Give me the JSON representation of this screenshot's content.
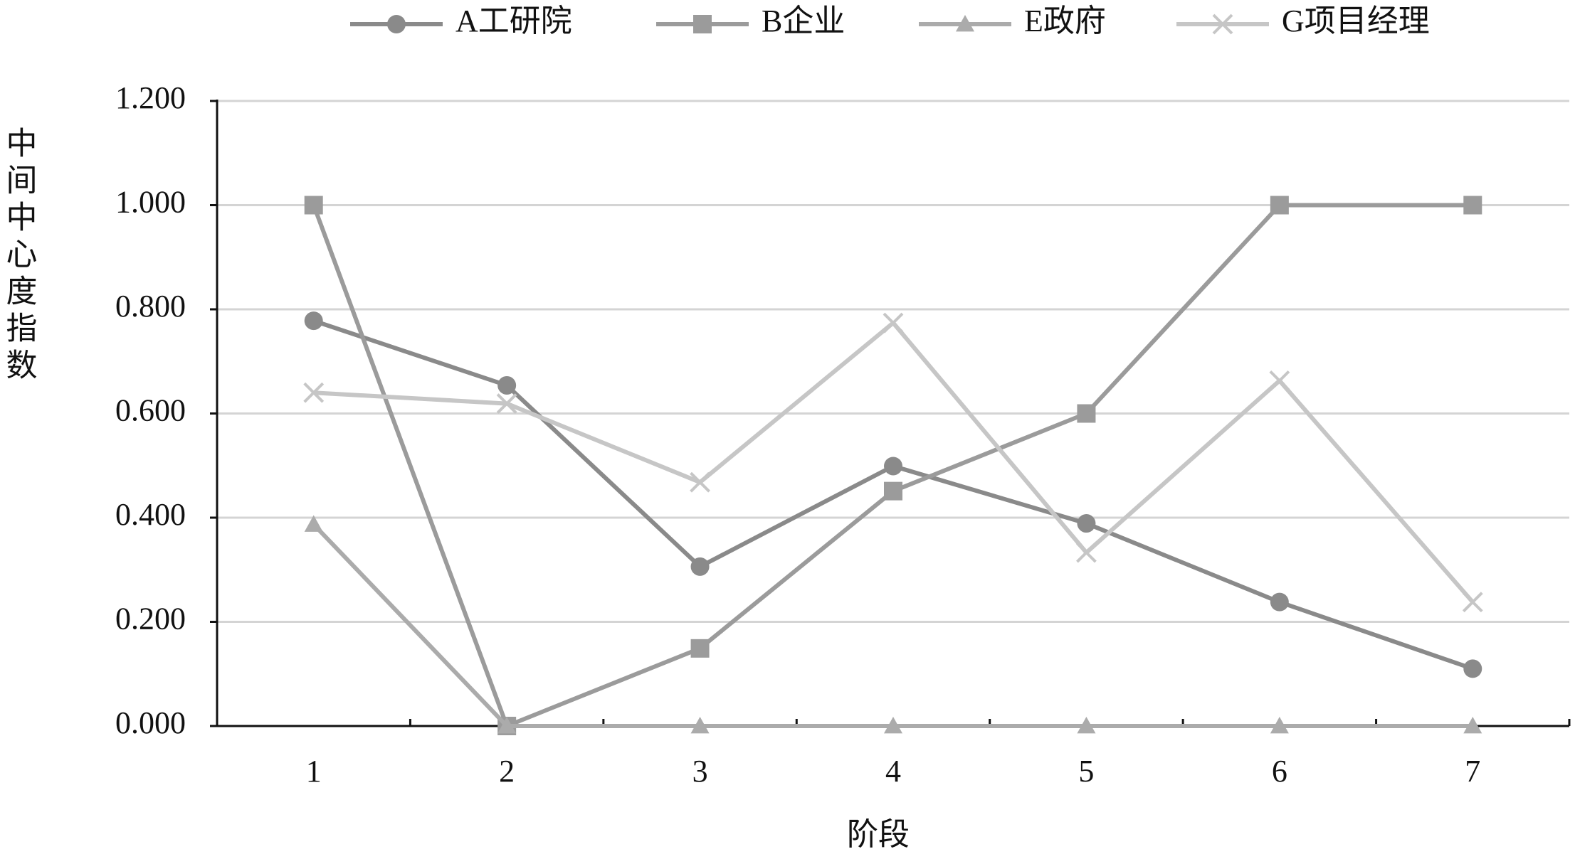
{
  "chart_data": {
    "type": "line",
    "x_label": "阶段",
    "y_label": "中间中心度指数",
    "categories": [
      "1",
      "2",
      "3",
      "4",
      "5",
      "6",
      "7"
    ],
    "ylim": [
      0,
      1.2
    ],
    "yticks": [
      {
        "value": 0,
        "label": "0.000"
      },
      {
        "value": 0.2,
        "label": "0.200"
      },
      {
        "value": 0.4,
        "label": "0.400"
      },
      {
        "value": 0.6,
        "label": "0.600"
      },
      {
        "value": 0.8,
        "label": "0.800"
      },
      {
        "value": 1.0,
        "label": "1.000"
      },
      {
        "value": 1.2,
        "label": "1.200"
      }
    ],
    "grid": true,
    "legend": "top",
    "series": [
      {
        "name": "A工研院",
        "color": "#8a8a8a",
        "marker": "circle",
        "values": [
          0.778,
          0.654,
          0.306,
          0.499,
          0.389,
          0.238,
          0.11
        ]
      },
      {
        "name": "B企业",
        "color": "#9b9b9b",
        "marker": "square",
        "values": [
          1.0,
          0.0,
          0.149,
          0.451,
          0.6,
          1.0,
          1.0
        ]
      },
      {
        "name": "E政府",
        "color": "#ababab",
        "marker": "triangle",
        "values": [
          0.387,
          0.0,
          0.0,
          0.0,
          0.0,
          0.0,
          0.0
        ]
      },
      {
        "name": "G项目经理",
        "color": "#c6c6c6",
        "marker": "x",
        "values": [
          0.64,
          0.619,
          0.468,
          0.774,
          0.333,
          0.663,
          0.238
        ]
      }
    ]
  }
}
